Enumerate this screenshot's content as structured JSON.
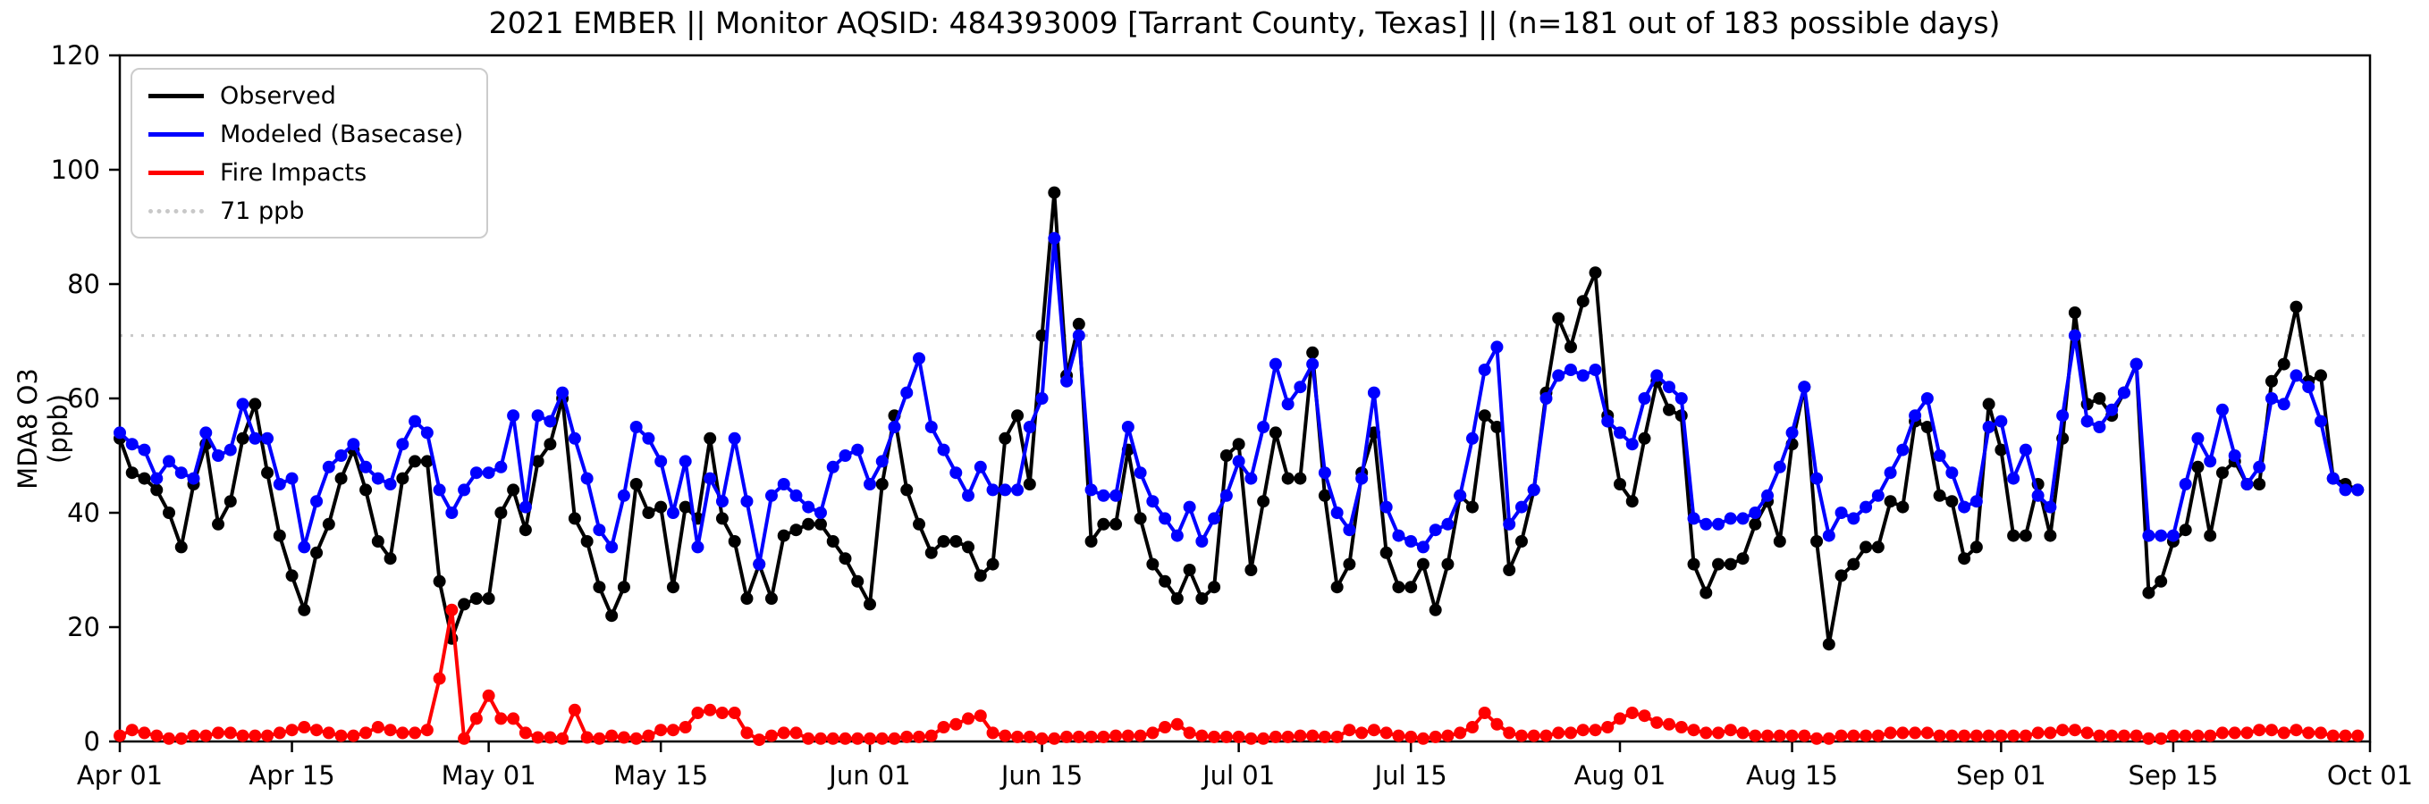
{
  "chart_data": {
    "type": "line",
    "title": "2021 EMBER || Monitor AQSID: 484393009 [Tarrant County, Texas] || (n=181 out of 183 possible days)",
    "ylabel": "MDA8 O3 (ppb)",
    "xlabel": "",
    "ylim": [
      0,
      120
    ],
    "yticks": [
      0,
      20,
      40,
      60,
      80,
      100,
      120
    ],
    "xlim_days": [
      0,
      183
    ],
    "grid": false,
    "legend_position": "upper-left",
    "xticks": [
      {
        "label": "Apr 01",
        "day": 0
      },
      {
        "label": "Apr 15",
        "day": 14
      },
      {
        "label": "May 01",
        "day": 30
      },
      {
        "label": "May 15",
        "day": 44
      },
      {
        "label": "Jun 01",
        "day": 61
      },
      {
        "label": "Jun 15",
        "day": 75
      },
      {
        "label": "Jul 01",
        "day": 91
      },
      {
        "label": "Jul 15",
        "day": 105
      },
      {
        "label": "Aug 01",
        "day": 122
      },
      {
        "label": "Aug 15",
        "day": 136
      },
      {
        "label": "Sep 01",
        "day": 153
      },
      {
        "label": "Sep 15",
        "day": 167
      },
      {
        "label": "Oct 01",
        "day": 183
      }
    ],
    "ref_line": {
      "label": "71 ppb",
      "value": 71,
      "color": "#c8c8c8"
    },
    "colors": {
      "observed": "#000000",
      "modeled": "#0000ff",
      "fire": "#ff0000"
    },
    "series": [
      {
        "name": "Observed",
        "color": "#000000",
        "values": [
          53,
          47,
          46,
          44,
          40,
          34,
          45,
          52,
          38,
          42,
          53,
          59,
          47,
          36,
          29,
          23,
          33,
          38,
          46,
          51,
          44,
          35,
          32,
          46,
          49,
          49,
          28,
          18,
          24,
          25,
          25,
          40,
          44,
          37,
          49,
          52,
          60,
          39,
          35,
          27,
          22,
          27,
          45,
          40,
          41,
          27,
          41,
          39,
          53,
          39,
          35,
          25,
          31,
          25,
          36,
          37,
          38,
          38,
          35,
          32,
          28,
          24,
          45,
          57,
          44,
          38,
          33,
          35,
          35,
          34,
          29,
          31,
          53,
          57,
          45,
          71,
          96,
          64,
          73,
          35,
          38,
          38,
          51,
          39,
          31,
          28,
          25,
          30,
          25,
          27,
          50,
          52,
          30,
          42,
          54,
          46,
          46,
          68,
          43,
          27,
          31,
          47,
          54,
          33,
          27,
          27,
          31,
          23,
          31,
          43,
          41,
          57,
          55,
          30,
          35,
          44,
          61,
          74,
          69,
          77,
          82,
          57,
          45,
          42,
          53,
          63,
          58,
          57,
          31,
          26,
          31,
          31,
          32,
          38,
          42,
          35,
          52,
          62,
          35,
          17,
          29,
          31,
          34,
          34,
          42,
          41,
          56,
          55,
          43,
          42,
          32,
          34,
          59,
          51,
          36,
          36,
          45,
          36,
          53,
          75,
          59,
          60,
          57,
          61,
          66,
          26,
          28,
          35,
          37,
          48,
          36,
          47,
          49,
          45,
          45,
          63,
          66,
          76,
          63,
          64,
          46,
          45,
          44
        ]
      },
      {
        "name": "Modeled (Basecase)",
        "color": "#0000ff",
        "values": [
          54,
          52,
          51,
          46,
          49,
          47,
          46,
          54,
          50,
          51,
          59,
          53,
          53,
          45,
          46,
          34,
          42,
          48,
          50,
          52,
          48,
          46,
          45,
          52,
          56,
          54,
          44,
          40,
          44,
          47,
          47,
          48,
          57,
          41,
          57,
          56,
          61,
          53,
          46,
          37,
          34,
          43,
          55,
          53,
          49,
          40,
          49,
          34,
          46,
          42,
          53,
          42,
          31,
          43,
          45,
          43,
          41,
          40,
          48,
          50,
          51,
          45,
          49,
          55,
          61,
          67,
          55,
          51,
          47,
          43,
          48,
          44,
          44,
          44,
          55,
          60,
          88,
          63,
          71,
          44,
          43,
          43,
          55,
          47,
          42,
          39,
          36,
          41,
          35,
          39,
          43,
          49,
          46,
          55,
          66,
          59,
          62,
          66,
          47,
          40,
          37,
          46,
          61,
          41,
          36,
          35,
          34,
          37,
          38,
          43,
          53,
          65,
          69,
          38,
          41,
          44,
          60,
          64,
          65,
          64,
          65,
          56,
          54,
          52,
          60,
          64,
          62,
          60,
          39,
          38,
          38,
          39,
          39,
          40,
          43,
          48,
          54,
          62,
          46,
          36,
          40,
          39,
          41,
          43,
          47,
          51,
          57,
          60,
          50,
          47,
          41,
          42,
          55,
          56,
          46,
          51,
          43,
          41,
          57,
          71,
          56,
          55,
          58,
          61,
          66,
          36,
          36,
          36,
          45,
          53,
          49,
          58,
          50,
          45,
          48,
          60,
          59,
          64,
          62,
          56,
          46,
          44,
          44
        ]
      },
      {
        "name": "Fire Impacts",
        "color": "#ff0000",
        "values": [
          1,
          2,
          1.5,
          1,
          0.5,
          0.5,
          1,
          1,
          1.5,
          1.5,
          1,
          1,
          1,
          1.5,
          2,
          2.5,
          2,
          1.5,
          1,
          1,
          1.5,
          2.5,
          2,
          1.5,
          1.5,
          2,
          11,
          23,
          0.5,
          4,
          8,
          4,
          4,
          1.5,
          0.7,
          0.7,
          0.5,
          5.5,
          0.7,
          0.5,
          1,
          0.7,
          0.5,
          1,
          2,
          2,
          2.5,
          5,
          5.5,
          5,
          5,
          1.5,
          0.3,
          1,
          1.5,
          1.5,
          0.5,
          0.5,
          0.5,
          0.5,
          0.5,
          0.5,
          0.5,
          0.5,
          0.8,
          0.8,
          1,
          2.5,
          3,
          4,
          4.5,
          1.5,
          1,
          0.8,
          0.8,
          0.5,
          0.5,
          0.8,
          0.8,
          0.8,
          0.8,
          1,
          1,
          1,
          1.5,
          2.5,
          3,
          1.5,
          1,
          0.8,
          0.8,
          0.8,
          0.5,
          0.5,
          0.8,
          0.8,
          1,
          1,
          0.8,
          0.8,
          2,
          1.5,
          2,
          1.5,
          1,
          0.8,
          0.5,
          0.8,
          1,
          1.5,
          2.5,
          5,
          3,
          1.5,
          1,
          1,
          1,
          1.5,
          1.5,
          2,
          2,
          2.5,
          4,
          5,
          4.5,
          3.3,
          3,
          2.5,
          2,
          1.5,
          1.5,
          2,
          1.5,
          1,
          1,
          1,
          1,
          1,
          0.5,
          0.5,
          1,
          1,
          1,
          1,
          1.5,
          1.5,
          1.5,
          1.5,
          1,
          1,
          1,
          1,
          1,
          1,
          1,
          1,
          1.5,
          1.5,
          2,
          2,
          1.5,
          1,
          1,
          1,
          1,
          0.5,
          0.5,
          1,
          1,
          1,
          1,
          1.5,
          1.5,
          1.5,
          2,
          2,
          1.5,
          2,
          1.5,
          1.5,
          1,
          1,
          1
        ]
      }
    ]
  }
}
